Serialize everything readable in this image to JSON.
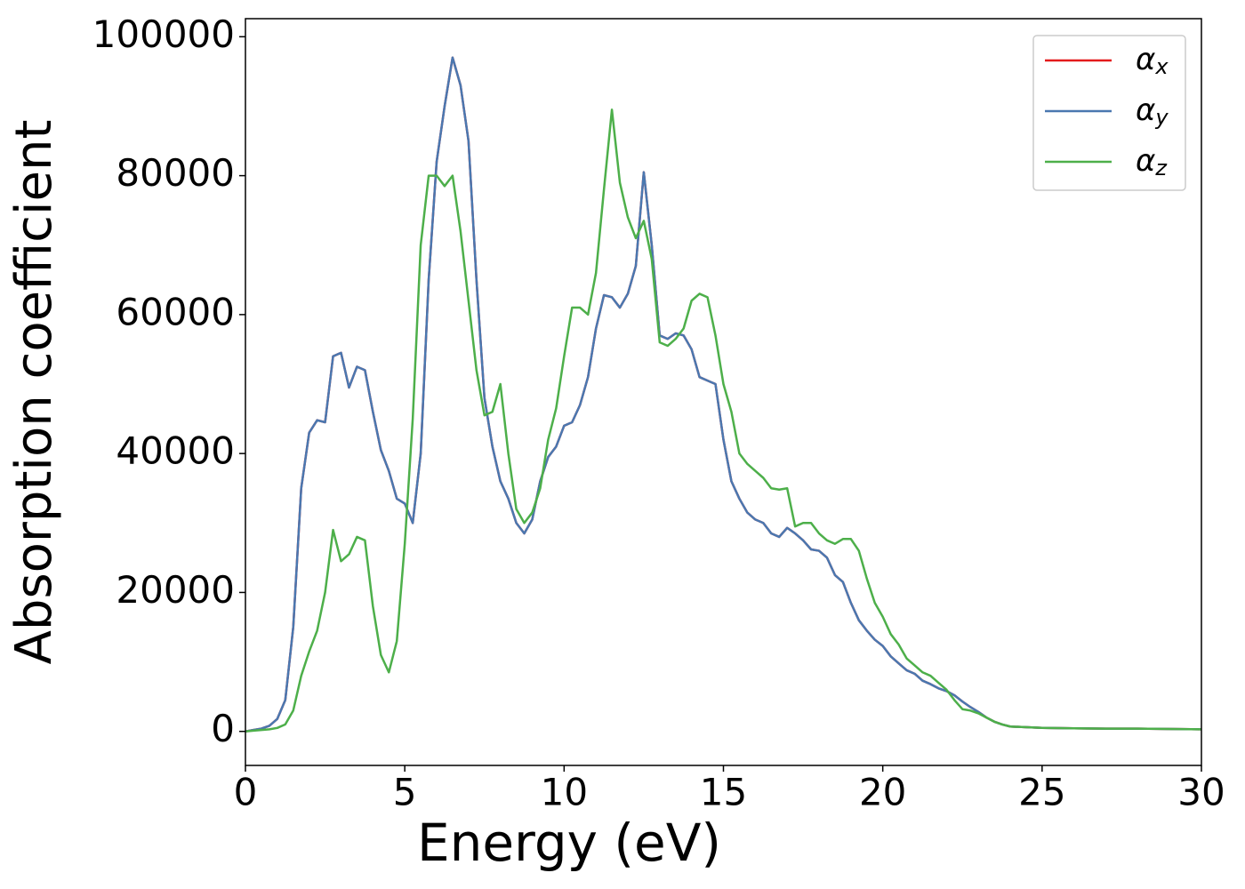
{
  "chart_data": {
    "type": "line",
    "xlabel": "Energy (eV)",
    "ylabel": "Absorption coefficient",
    "x": [
      0,
      0.25,
      0.5,
      0.75,
      1,
      1.25,
      1.5,
      1.75,
      2,
      2.25,
      2.5,
      2.75,
      3,
      3.25,
      3.5,
      3.75,
      4,
      4.25,
      4.5,
      4.75,
      5,
      5.25,
      5.5,
      5.75,
      6,
      6.25,
      6.5,
      6.75,
      7,
      7.25,
      7.5,
      7.75,
      8,
      8.25,
      8.5,
      8.75,
      9,
      9.25,
      9.5,
      9.75,
      10,
      10.25,
      10.5,
      10.75,
      11,
      11.25,
      11.5,
      11.75,
      12,
      12.25,
      12.5,
      12.75,
      13,
      13.25,
      13.5,
      13.75,
      14,
      14.25,
      14.5,
      14.75,
      15,
      15.25,
      15.5,
      15.75,
      16,
      16.25,
      16.5,
      16.75,
      17,
      17.25,
      17.5,
      17.75,
      18,
      18.25,
      18.5,
      18.75,
      19,
      19.25,
      19.5,
      19.75,
      20,
      20.25,
      20.5,
      20.75,
      21,
      21.25,
      21.5,
      21.75,
      22,
      22.25,
      22.5,
      22.75,
      23,
      23.25,
      23.5,
      23.75,
      24,
      25,
      26,
      27,
      28,
      29,
      30
    ],
    "series": [
      {
        "name": "αx",
        "color": "#e41a1c",
        "values": [
          0,
          200,
          400,
          800,
          1800,
          4500,
          15000,
          35000,
          43000,
          44800,
          44500,
          54000,
          54500,
          49500,
          52500,
          52000,
          46000,
          40500,
          37500,
          33500,
          32800,
          30000,
          40000,
          65000,
          82000,
          90000,
          97000,
          93000,
          85000,
          65000,
          48000,
          41000,
          36000,
          33500,
          30000,
          28500,
          30500,
          36000,
          39500,
          41000,
          44000,
          44500,
          47000,
          51000,
          58000,
          62800,
          62500,
          61000,
          63000,
          67000,
          80500,
          70000,
          57000,
          56500,
          57300,
          57000,
          55000,
          51000,
          50500,
          50000,
          42000,
          36000,
          33500,
          31500,
          30500,
          30000,
          28500,
          28000,
          29300,
          28500,
          27500,
          26200,
          26000,
          25000,
          22500,
          21500,
          18500,
          16000,
          14500,
          13200,
          12300,
          10800,
          9800,
          8800,
          8300,
          7300,
          6800,
          6200,
          5800,
          5200,
          4300,
          3500,
          2800,
          2000,
          1400,
          1000,
          700,
          500,
          450,
          400,
          400,
          350,
          300
        ]
      },
      {
        "name": "αy",
        "color": "#4a78b0",
        "values": [
          0,
          200,
          400,
          800,
          1800,
          4500,
          15000,
          35000,
          43000,
          44800,
          44500,
          54000,
          54500,
          49500,
          52500,
          52000,
          46000,
          40500,
          37500,
          33500,
          32800,
          30000,
          40000,
          65000,
          82000,
          90000,
          97000,
          93000,
          85000,
          65000,
          48000,
          41000,
          36000,
          33500,
          30000,
          28500,
          30500,
          36000,
          39500,
          41000,
          44000,
          44500,
          47000,
          51000,
          58000,
          62800,
          62500,
          61000,
          63000,
          67000,
          80500,
          70000,
          57000,
          56500,
          57300,
          57000,
          55000,
          51000,
          50500,
          50000,
          42000,
          36000,
          33500,
          31500,
          30500,
          30000,
          28500,
          28000,
          29300,
          28500,
          27500,
          26200,
          26000,
          25000,
          22500,
          21500,
          18500,
          16000,
          14500,
          13200,
          12300,
          10800,
          9800,
          8800,
          8300,
          7300,
          6800,
          6200,
          5800,
          5200,
          4300,
          3500,
          2800,
          2000,
          1400,
          1000,
          700,
          500,
          450,
          400,
          400,
          350,
          300
        ]
      },
      {
        "name": "αz",
        "color": "#4daf4a",
        "values": [
          0,
          100,
          200,
          300,
          500,
          1000,
          3000,
          8000,
          11500,
          14500,
          20000,
          29000,
          24500,
          25500,
          28000,
          27500,
          18000,
          11000,
          8500,
          13000,
          27000,
          45000,
          70000,
          80000,
          80000,
          78500,
          80000,
          72000,
          62000,
          52000,
          45500,
          46000,
          50000,
          40000,
          32000,
          30000,
          31500,
          35000,
          42000,
          46500,
          54000,
          61000,
          61000,
          60000,
          66000,
          78000,
          89500,
          79000,
          74000,
          71000,
          73500,
          68000,
          56000,
          55500,
          56500,
          58000,
          62000,
          63000,
          62500,
          57000,
          50000,
          46000,
          40000,
          38500,
          37500,
          36500,
          35000,
          34800,
          35000,
          29500,
          30000,
          30000,
          28500,
          27500,
          27000,
          27700,
          27700,
          26000,
          22000,
          18500,
          16500,
          14000,
          12500,
          10500,
          9500,
          8500,
          8000,
          7000,
          6000,
          4500,
          3200,
          3000,
          2600,
          2000,
          1400,
          1000,
          700,
          500,
          450,
          400,
          400,
          350,
          300
        ]
      }
    ],
    "xlim": [
      0,
      30
    ],
    "xticks": [
      0,
      5,
      10,
      15,
      20,
      25,
      30
    ],
    "ylim": [
      -4900,
      102600
    ],
    "yticks": [
      0,
      20000,
      40000,
      60000,
      80000,
      100000
    ],
    "legend": "upper right",
    "grid": false
  }
}
